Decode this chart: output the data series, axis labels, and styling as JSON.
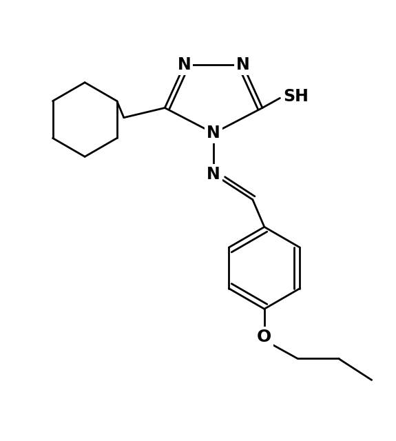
{
  "bg_color": "#ffffff",
  "line_color": "#000000",
  "line_width": 2.0,
  "font_size": 17,
  "font_weight": "bold",
  "figsize": [
    5.75,
    6.4
  ],
  "dpi": 100,
  "xlim": [
    0,
    10
  ],
  "ylim": [
    0,
    11.13
  ]
}
